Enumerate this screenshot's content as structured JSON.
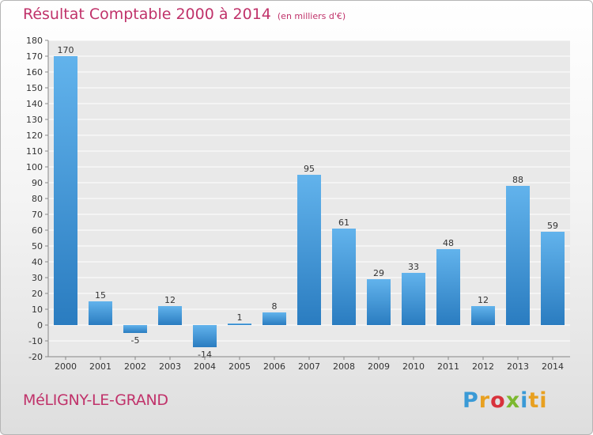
{
  "header": {
    "title": "Résultat Comptable 2000 à 2014",
    "subtitle": "(en milliers d'€)"
  },
  "footer": {
    "commune": "MéLIGNY-LE-GRAND",
    "logo": {
      "letters": [
        "P",
        "r",
        "o",
        "x",
        "i",
        "ti"
      ],
      "text": "Proxiti"
    }
  },
  "chart_data": {
    "type": "bar",
    "title": "Résultat Comptable 2000 à 2014",
    "subtitle": "(en milliers d'€)",
    "xlabel": "",
    "ylabel": "",
    "categories": [
      "2000",
      "2001",
      "2002",
      "2003",
      "2004",
      "2005",
      "2006",
      "2007",
      "2008",
      "2009",
      "2010",
      "2011",
      "2012",
      "2013",
      "2014"
    ],
    "values": [
      170,
      15,
      -5,
      12,
      -14,
      1,
      8,
      95,
      61,
      29,
      33,
      48,
      12,
      88,
      59
    ],
    "data_labels": [
      "170",
      "15",
      "-5",
      "12",
      "-14",
      "1",
      "8",
      "95",
      "61",
      "29",
      "33",
      "48",
      "12",
      "88",
      "59"
    ],
    "ylim": [
      -20,
      180
    ],
    "yticks": [
      -20,
      -10,
      0,
      10,
      20,
      30,
      40,
      50,
      60,
      70,
      80,
      90,
      100,
      110,
      120,
      130,
      140,
      150,
      160,
      170,
      180
    ],
    "grid": true,
    "legend": "none",
    "colors": {
      "bar_light": "#62b3ec",
      "bar_dark": "#2a7cc0",
      "grid": "#ffffff",
      "axis": "#888888",
      "title": "#c0326a"
    }
  }
}
